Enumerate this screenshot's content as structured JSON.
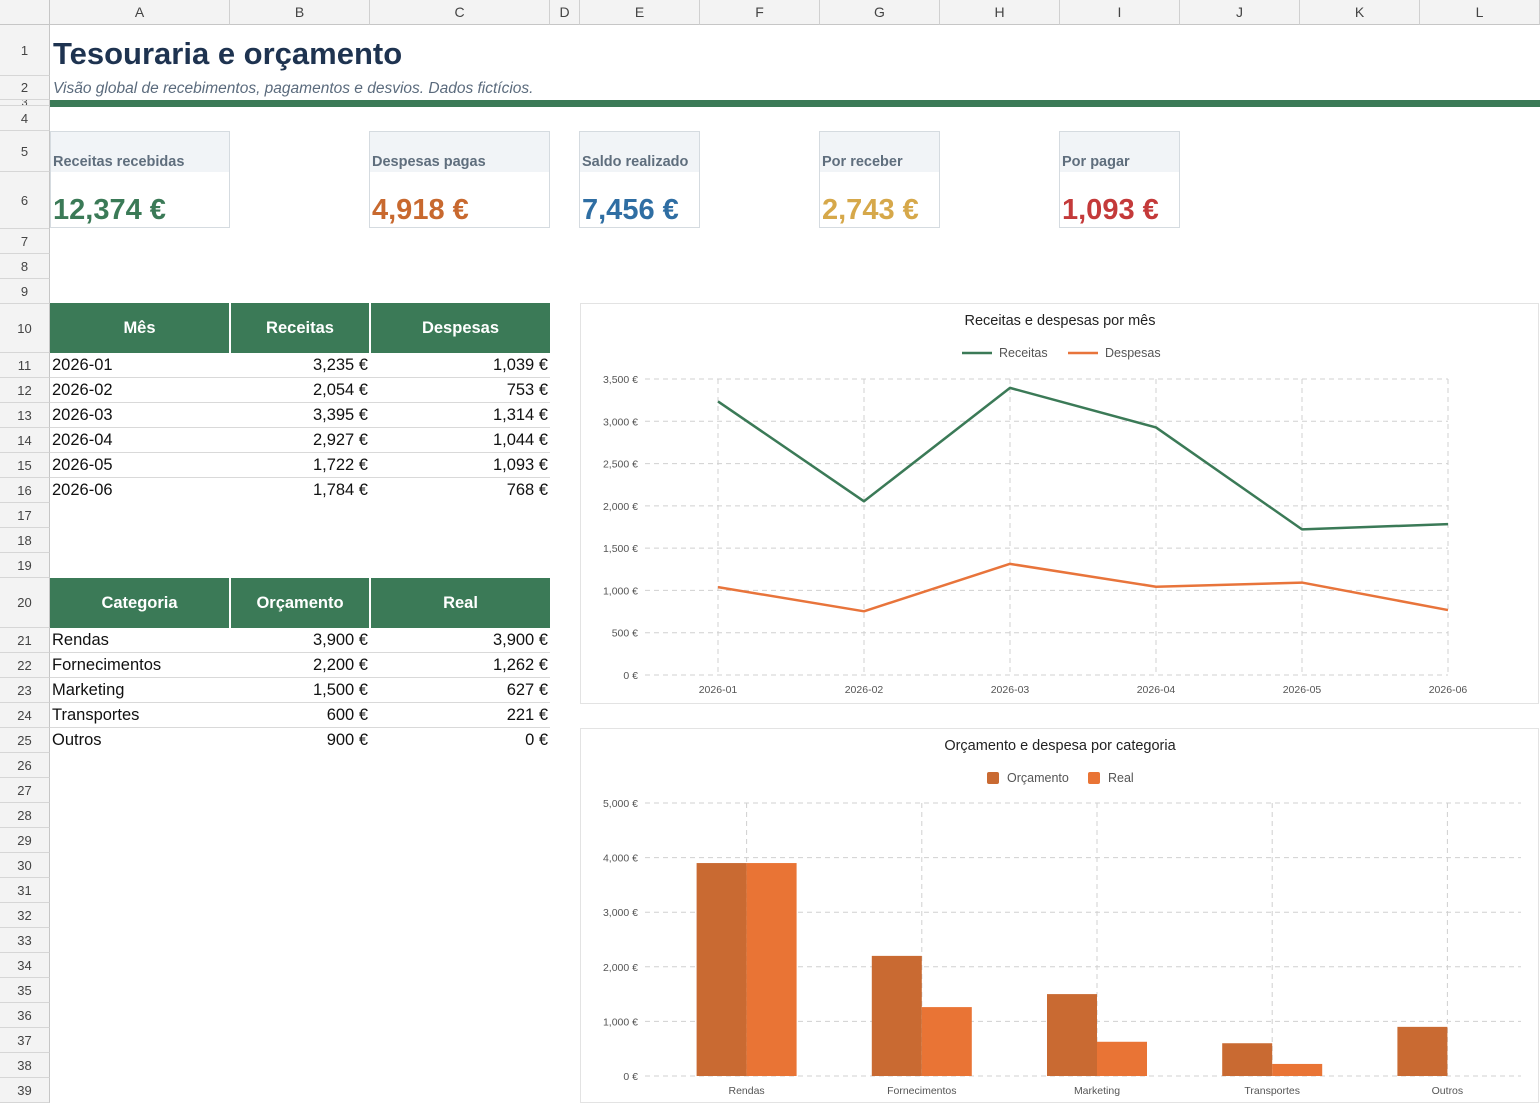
{
  "sheet": {
    "columns": [
      "A",
      "B",
      "C",
      "D",
      "E",
      "F",
      "G",
      "H",
      "I",
      "J",
      "K",
      "L"
    ],
    "rows": [
      "1",
      "2",
      "3",
      "4",
      "5",
      "6",
      "7",
      "8",
      "9",
      "10",
      "11",
      "12",
      "13",
      "14",
      "15",
      "16",
      "17",
      "18",
      "19",
      "20",
      "21",
      "22",
      "23",
      "24",
      "25",
      "26",
      "27",
      "28",
      "29",
      "30",
      "31",
      "32",
      "33",
      "34",
      "35",
      "36",
      "37",
      "38",
      "39"
    ]
  },
  "header": {
    "title": "Tesouraria e orçamento",
    "subtitle": "Visão global de recebimentos, pagamentos e desvios. Dados fictícios."
  },
  "kpis": [
    {
      "label": "Receitas recebidas",
      "value": "12,374 €",
      "color": "#3b7a57"
    },
    {
      "label": "Despesas pagas",
      "value": "4,918 €",
      "color": "#c8692f"
    },
    {
      "label": "Saldo realizado",
      "value": "7,456 €",
      "color": "#2f6ea3"
    },
    {
      "label": "Por receber",
      "value": "2,743 €",
      "color": "#d6a84a"
    },
    {
      "label": "Por pagar",
      "value": "1,093 €",
      "color": "#c43a3a"
    }
  ],
  "monthly_table": {
    "headers": [
      "Mês",
      "Receitas",
      "Despesas"
    ],
    "rows": [
      [
        "2026-01",
        "3,235 €",
        "1,039 €"
      ],
      [
        "2026-02",
        "2,054 €",
        "753 €"
      ],
      [
        "2026-03",
        "3,395 €",
        "1,314 €"
      ],
      [
        "2026-04",
        "2,927 €",
        "1,044 €"
      ],
      [
        "2026-05",
        "1,722 €",
        "1,093 €"
      ],
      [
        "2026-06",
        "1,784 €",
        "768 €"
      ]
    ]
  },
  "category_table": {
    "headers": [
      "Categoria",
      "Orçamento",
      "Real"
    ],
    "rows": [
      [
        "Rendas",
        "3,900 €",
        "3,900 €"
      ],
      [
        "Fornecimentos",
        "2,200 €",
        "1,262 €"
      ],
      [
        "Marketing",
        "1,500 €",
        "627 €"
      ],
      [
        "Transportes",
        "600 €",
        "221 €"
      ],
      [
        "Outros",
        "900 €",
        "0 €"
      ]
    ]
  },
  "colors": {
    "header_green": "#3b7a57",
    "receitas_line": "#3b7a57",
    "despesas_line": "#e8743b",
    "orcamento_bar": "#c96a32",
    "real_bar": "#e97435"
  },
  "chart_data": [
    {
      "type": "line",
      "title": "Receitas e despesas por mês",
      "categories": [
        "2026-01",
        "2026-02",
        "2026-03",
        "2026-04",
        "2026-05",
        "2026-06"
      ],
      "series": [
        {
          "name": "Receitas",
          "values": [
            3235,
            2054,
            3395,
            2927,
            1722,
            1784
          ]
        },
        {
          "name": "Despesas",
          "values": [
            1039,
            753,
            1314,
            1044,
            1093,
            768
          ]
        }
      ],
      "ylim": [
        0,
        3500
      ],
      "yticks": [
        "0 €",
        "500 €",
        "1,000 €",
        "1,500 €",
        "2,000 €",
        "2,500 €",
        "3,000 €",
        "3,500 €"
      ],
      "legend": "top",
      "grid": true
    },
    {
      "type": "bar",
      "title": "Orçamento e despesa por categoria",
      "categories": [
        "Rendas",
        "Fornecimentos",
        "Marketing",
        "Transportes",
        "Outros"
      ],
      "series": [
        {
          "name": "Orçamento",
          "values": [
            3900,
            2200,
            1500,
            600,
            900
          ]
        },
        {
          "name": "Real",
          "values": [
            3900,
            1262,
            627,
            221,
            0
          ]
        }
      ],
      "ylim": [
        0,
        5000
      ],
      "yticks": [
        "0 €",
        "1,000 €",
        "2,000 €",
        "3,000 €",
        "4,000 €",
        "5,000 €"
      ],
      "legend": "top",
      "grid": true
    }
  ]
}
